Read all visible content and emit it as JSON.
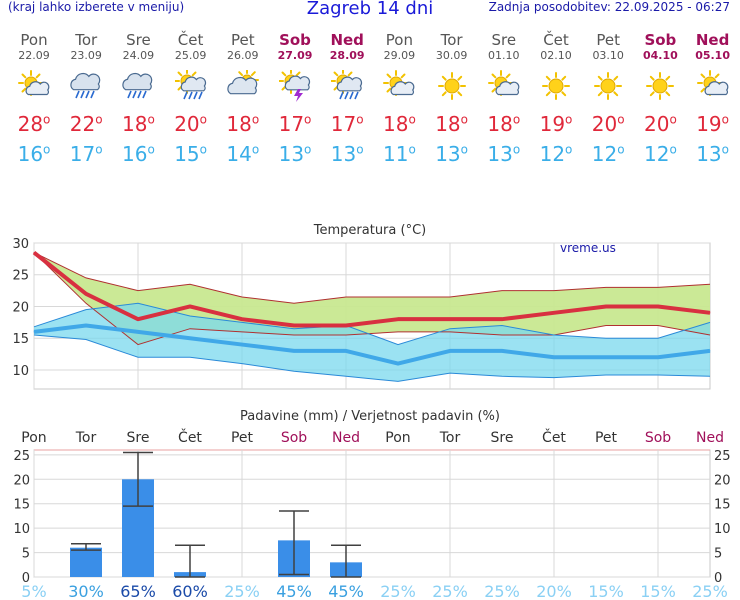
{
  "header": {
    "left_note": "(kraj lahko izberete v meniju)",
    "title": "Zagreb 14 dni",
    "updated": "Zadnja posodobitev: 22.09.2025 - 06:27"
  },
  "days": [
    {
      "day": "Pon",
      "date": "22.09",
      "icon": "sun-cloud-icon",
      "hi": "28",
      "lo": "16",
      "weekend": false
    },
    {
      "day": "Tor",
      "date": "23.09",
      "icon": "cloud-rain-icon",
      "hi": "22",
      "lo": "17",
      "weekend": false
    },
    {
      "day": "Sre",
      "date": "24.09",
      "icon": "cloud-rain-icon",
      "hi": "18",
      "lo": "16",
      "weekend": false
    },
    {
      "day": "Čet",
      "date": "25.09",
      "icon": "sun-cloud-rain-icon",
      "hi": "20",
      "lo": "15",
      "weekend": false
    },
    {
      "day": "Pet",
      "date": "26.09",
      "icon": "sun-behind-cloud-icon",
      "hi": "18",
      "lo": "14",
      "weekend": false
    },
    {
      "day": "Sob",
      "date": "27.09",
      "icon": "cloud-thunder-icon",
      "hi": "17",
      "lo": "13",
      "weekend": true
    },
    {
      "day": "Ned",
      "date": "28.09",
      "icon": "sun-cloud-rain-icon",
      "hi": "17",
      "lo": "13",
      "weekend": true
    },
    {
      "day": "Pon",
      "date": "29.09",
      "icon": "sun-cloud-icon",
      "hi": "18",
      "lo": "11",
      "weekend": false
    },
    {
      "day": "Tor",
      "date": "30.09",
      "icon": "sun-icon",
      "hi": "18",
      "lo": "13",
      "weekend": false
    },
    {
      "day": "Sre",
      "date": "01.10",
      "icon": "sun-cloud-icon",
      "hi": "18",
      "lo": "13",
      "weekend": false
    },
    {
      "day": "Čet",
      "date": "02.10",
      "icon": "sun-icon",
      "hi": "19",
      "lo": "12",
      "weekend": false
    },
    {
      "day": "Pet",
      "date": "03.10",
      "icon": "sun-icon",
      "hi": "20",
      "lo": "12",
      "weekend": false
    },
    {
      "day": "Sob",
      "date": "04.10",
      "icon": "sun-icon",
      "hi": "20",
      "lo": "12",
      "weekend": true
    },
    {
      "day": "Ned",
      "date": "05.10",
      "icon": "sun-cloud-icon",
      "hi": "19",
      "lo": "13",
      "weekend": true
    }
  ],
  "chart_data": [
    {
      "type": "line",
      "title": "Temperatura (°C)",
      "watermark": "vreme.us",
      "x": [
        0,
        1,
        2,
        3,
        4,
        5,
        6,
        7,
        8,
        9,
        10,
        11,
        12,
        13
      ],
      "ylim": [
        7,
        30
      ],
      "yticks": [
        10,
        15,
        20,
        25,
        30
      ],
      "grid": true,
      "colors": {
        "max": "#d83040",
        "min": "#40a8e8",
        "max_band": "#c8e890",
        "min_band": "#7ad8ee",
        "overlap": "#78c878"
      },
      "series": [
        {
          "name": "",
          "role": "max",
          "values": [
            28.5,
            22,
            18,
            20,
            18,
            17,
            17,
            18,
            18,
            18,
            19,
            20,
            20,
            19
          ]
        },
        {
          "name": "",
          "role": "min",
          "values": [
            16,
            17,
            16,
            15,
            14,
            13,
            13,
            11,
            13,
            13,
            12,
            12,
            12,
            13
          ]
        }
      ],
      "max_band": {
        "upper": [
          28.5,
          24.5,
          22.5,
          23.5,
          21.5,
          20.5,
          21.5,
          21.5,
          21.5,
          22.5,
          22.5,
          23,
          23,
          23.5
        ],
        "lower": [
          28.5,
          20.5,
          14,
          16.5,
          16,
          15.5,
          15.5,
          16,
          16,
          15.5,
          15.5,
          17,
          17,
          15.5
        ]
      },
      "min_band": {
        "upper": [
          16.8,
          19.5,
          20.5,
          18.5,
          17.5,
          16.5,
          17,
          14,
          16.5,
          17,
          15.5,
          15,
          15,
          17.5
        ],
        "lower": [
          15.5,
          14.8,
          12,
          12,
          11,
          9.8,
          9,
          8.2,
          9.5,
          9,
          8.8,
          9.2,
          9.2,
          9
        ]
      }
    },
    {
      "type": "bar",
      "title": "Padavine (mm) / Verjetnost padavin (%)",
      "categories": [
        "Pon",
        "Tor",
        "Sre",
        "Čet",
        "Pet",
        "Sob",
        "Ned",
        "Pon",
        "Tor",
        "Sre",
        "Čet",
        "Pet",
        "Sob",
        "Ned"
      ],
      "weekend": [
        false,
        false,
        false,
        false,
        false,
        true,
        true,
        false,
        false,
        false,
        false,
        false,
        true,
        true
      ],
      "values": [
        0,
        6,
        20,
        1,
        0,
        7.5,
        3,
        0,
        0,
        0,
        0,
        0,
        0,
        0
      ],
      "err_low": [
        null,
        5.5,
        14.5,
        0,
        null,
        0.5,
        0,
        null,
        null,
        null,
        null,
        null,
        null,
        null
      ],
      "err_high": [
        null,
        6.8,
        25.5,
        6.5,
        null,
        13.5,
        6.5,
        null,
        null,
        null,
        null,
        null,
        null,
        null
      ],
      "probability": [
        "5%",
        "30%",
        "65%",
        "60%",
        "25%",
        "45%",
        "45%",
        "25%",
        "25%",
        "25%",
        "20%",
        "15%",
        "15%",
        "25%"
      ],
      "prob_values": [
        5,
        30,
        65,
        60,
        25,
        45,
        45,
        25,
        25,
        25,
        20,
        15,
        15,
        25
      ],
      "ylim": [
        0,
        26
      ],
      "yticks": [
        0,
        5,
        10,
        15,
        20,
        25
      ],
      "grid": true,
      "colors": {
        "bar": "#3a8ee8",
        "errorbar": "#404040",
        "prob_high": "#1a4aa8",
        "prob_mid": "#3aa0e0",
        "prob_low": "#8ad0f4",
        "weekend_label": "#a0105a"
      }
    }
  ]
}
